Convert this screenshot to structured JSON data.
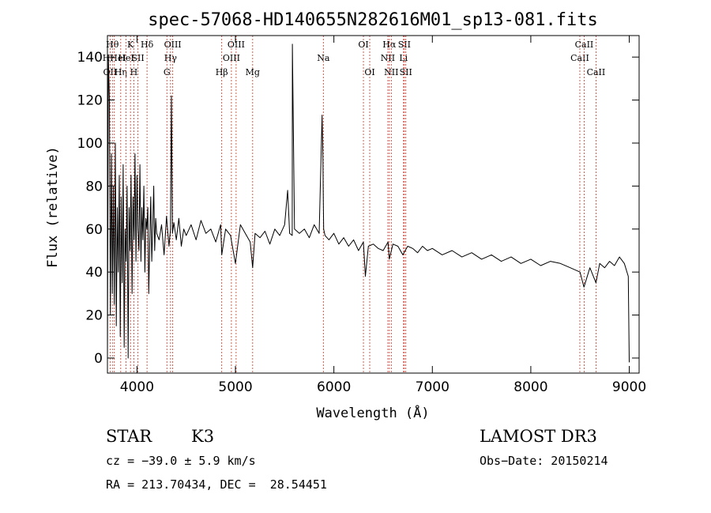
{
  "chart_data": {
    "type": "line",
    "title": "spec-57068-HD140655N282616M01_sp13-081.fits",
    "xlabel": "Wavelength (Å)",
    "ylabel": "Flux (relative)",
    "xlim": [
      3700,
      9100
    ],
    "ylim": [
      -7,
      150
    ],
    "xticks": [
      4000,
      5000,
      6000,
      7000,
      8000,
      9000
    ],
    "yticks": [
      0,
      20,
      40,
      60,
      80,
      100,
      120,
      140
    ],
    "spectrum": {
      "x": [
        3700,
        3710,
        3720,
        3730,
        3740,
        3750,
        3760,
        3770,
        3780,
        3790,
        3800,
        3810,
        3820,
        3830,
        3840,
        3850,
        3860,
        3870,
        3880,
        3890,
        3900,
        3910,
        3920,
        3930,
        3940,
        3950,
        3960,
        3970,
        3980,
        3990,
        4000,
        4010,
        4020,
        4030,
        4040,
        4050,
        4060,
        4070,
        4080,
        4090,
        4100,
        4110,
        4120,
        4130,
        4140,
        4150,
        4160,
        4170,
        4180,
        4190,
        4200,
        4225,
        4250,
        4275,
        4300,
        4325,
        4340,
        4350,
        4360,
        4375,
        4400,
        4425,
        4450,
        4475,
        4500,
        4550,
        4600,
        4650,
        4700,
        4750,
        4800,
        4850,
        4861,
        4900,
        4950,
        5000,
        5050,
        5100,
        5150,
        5175,
        5200,
        5250,
        5300,
        5350,
        5400,
        5450,
        5500,
        5530,
        5550,
        5577,
        5578,
        5600,
        5650,
        5700,
        5750,
        5800,
        5850,
        5880,
        5889,
        5893,
        5896,
        5910,
        5950,
        6000,
        6050,
        6100,
        6150,
        6200,
        6250,
        6300,
        6320,
        6350,
        6400,
        6450,
        6500,
        6550,
        6563,
        6600,
        6650,
        6700,
        6750,
        6800,
        6850,
        6900,
        6950,
        7000,
        7100,
        7200,
        7300,
        7400,
        7500,
        7600,
        7700,
        7800,
        7900,
        8000,
        8100,
        8200,
        8300,
        8400,
        8500,
        8540,
        8600,
        8662,
        8700,
        8750,
        8800,
        8850,
        8900,
        8950,
        8990,
        9000
      ],
      "y": [
        0,
        140,
        120,
        20,
        95,
        30,
        80,
        25,
        100,
        15,
        70,
        40,
        85,
        10,
        75,
        35,
        90,
        5,
        60,
        45,
        80,
        0,
        70,
        50,
        85,
        30,
        75,
        55,
        95,
        45,
        85,
        60,
        50,
        90,
        45,
        70,
        55,
        80,
        40,
        65,
        60,
        70,
        30,
        55,
        75,
        45,
        60,
        80,
        50,
        65,
        58,
        55,
        62,
        48,
        66,
        52,
        60,
        122,
        58,
        63,
        55,
        65,
        52,
        60,
        57,
        62,
        55,
        64,
        58,
        60,
        54,
        62,
        48,
        60,
        57,
        44,
        62,
        58,
        54,
        42,
        58,
        56,
        59,
        53,
        60,
        57,
        62,
        78,
        58,
        57,
        146,
        60,
        58,
        60,
        56,
        62,
        58,
        113,
        92,
        72,
        60,
        57,
        55,
        58,
        53,
        56,
        52,
        55,
        50,
        54,
        38,
        52,
        53,
        51,
        50,
        54,
        46,
        53,
        52,
        48,
        52,
        51,
        49,
        52,
        50,
        51,
        48,
        50,
        47,
        49,
        46,
        48,
        45,
        47,
        44,
        46,
        43,
        45,
        44,
        42,
        40,
        33,
        42,
        35,
        44,
        42,
        45,
        43,
        47,
        44,
        38,
        -2
      ]
    },
    "annotation_lines": [
      {
        "x": 3727,
        "row": 3,
        "label": "OII"
      },
      {
        "x": 3750,
        "row": 1,
        "label": "Hθ"
      },
      {
        "x": 3770,
        "row": 2,
        "label": "HHeI"
      },
      {
        "x": 3835,
        "row": 3,
        "label": "Hη"
      },
      {
        "x": 3889,
        "row": 2,
        "label": "HeI"
      },
      {
        "x": 3934,
        "row": 1,
        "label": "K"
      },
      {
        "x": 3968,
        "row": 3,
        "label": "H"
      },
      {
        "x": 4010,
        "row": 2,
        "label": "SII"
      },
      {
        "x": 4102,
        "row": 1,
        "label": "Hδ"
      },
      {
        "x": 4304,
        "row": 3,
        "label": "G"
      },
      {
        "x": 4341,
        "row": 2,
        "label": "Hγ"
      },
      {
        "x": 4363,
        "row": 1,
        "label": "OIII"
      },
      {
        "x": 4861,
        "row": 3,
        "label": "Hβ"
      },
      {
        "x": 4959,
        "row": 2,
        "label": "OIII"
      },
      {
        "x": 5007,
        "row": 1,
        "label": "OIII"
      },
      {
        "x": 5175,
        "row": 3,
        "label": "Mg"
      },
      {
        "x": 5893,
        "row": 2,
        "label": "Na"
      },
      {
        "x": 6300,
        "row": 1,
        "label": "OI"
      },
      {
        "x": 6364,
        "row": 3,
        "label": "OI"
      },
      {
        "x": 6548,
        "row": 2,
        "label": "NII"
      },
      {
        "x": 6563,
        "row": 1,
        "label": "Hα"
      },
      {
        "x": 6583,
        "row": 3,
        "label": "NII"
      },
      {
        "x": 6716,
        "row": 1,
        "label": "SII"
      },
      {
        "x": 6707,
        "row": 2,
        "label": "Li"
      },
      {
        "x": 6731,
        "row": 3,
        "label": "SII"
      },
      {
        "x": 8498,
        "row": 2,
        "label": "CaII"
      },
      {
        "x": 8542,
        "row": 1,
        "label": "CaII"
      },
      {
        "x": 8662,
        "row": 3,
        "label": "CaII"
      }
    ]
  },
  "info": {
    "class_label": "STAR",
    "subclass": "K3",
    "survey": "LAMOST DR3",
    "cz": "cz = −39.0 ± 5.9 km/s",
    "obs_date": "Obs−Date: 20150214",
    "coords": "RA = 213.70434, DEC =  28.54451"
  },
  "colors": {
    "axis": "#000000",
    "spectrum": "#000000",
    "annotation_line": "#c0392b",
    "background": "#ffffff"
  }
}
